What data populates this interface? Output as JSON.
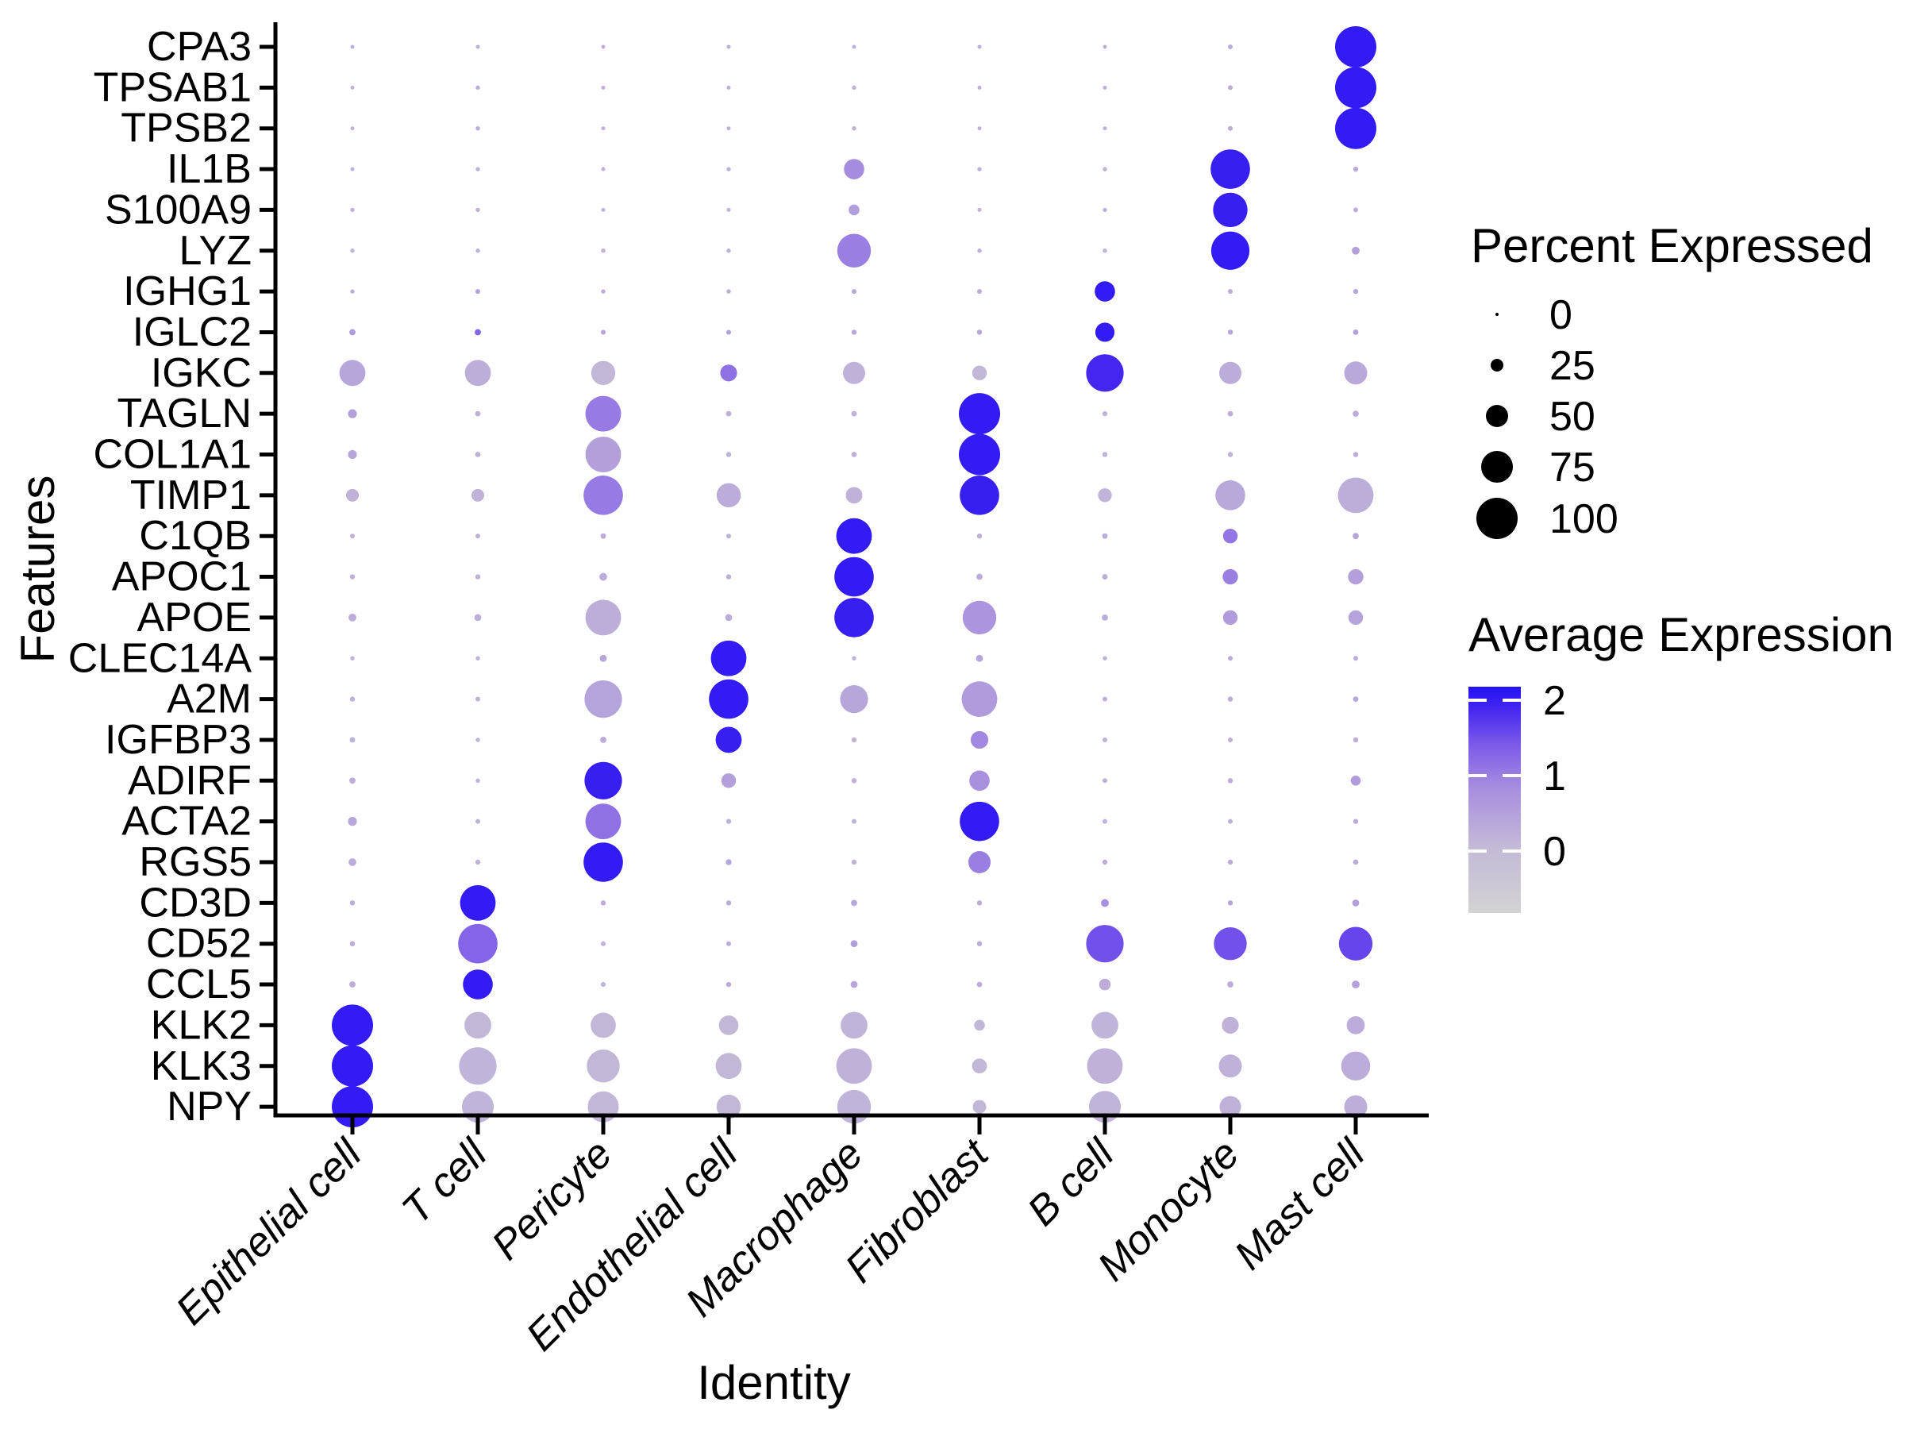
{
  "chart_data": {
    "type": "scatter",
    "subtype": "dotplot",
    "title": "",
    "xlabel": "Identity",
    "ylabel": "Features",
    "legend_position": "right",
    "grid": false,
    "cell_types": [
      "Epithelial cell",
      "T cell",
      "Pericyte",
      "Endothelial cell",
      "Macrophage",
      "Fibroblast",
      "B cell",
      "Monocyte",
      "Mast cell"
    ],
    "genes": [
      "CPA3",
      "TPSAB1",
      "TPSB2",
      "IL1B",
      "S100A9",
      "LYZ",
      "IGHG1",
      "IGLC2",
      "IGKC",
      "TAGLN",
      "COL1A1",
      "TIMP1",
      "C1QB",
      "APOC1",
      "APOE",
      "CLEC14A",
      "A2M",
      "IGFBP3",
      "ADIRF",
      "ACTA2",
      "RGS5",
      "CD3D",
      "CD52",
      "CCL5",
      "KLK2",
      "KLK3",
      "NPY"
    ],
    "series": [
      {
        "name": "percent_expressed",
        "values": [
          [
            2,
            2,
            2,
            2,
            2,
            2,
            2,
            4,
            100
          ],
          [
            2,
            3,
            2,
            2,
            3,
            2,
            2,
            4,
            100
          ],
          [
            2,
            3,
            2,
            2,
            3,
            2,
            2,
            4,
            100
          ],
          [
            2,
            3,
            2,
            3,
            45,
            3,
            3,
            95,
            5
          ],
          [
            3,
            3,
            2,
            2,
            20,
            2,
            3,
            82,
            4
          ],
          [
            3,
            3,
            3,
            3,
            80,
            3,
            3,
            92,
            12
          ],
          [
            3,
            4,
            3,
            3,
            4,
            4,
            45,
            4,
            5
          ],
          [
            8,
            8,
            4,
            4,
            5,
            5,
            42,
            5,
            6
          ],
          [
            60,
            60,
            55,
            36,
            50,
            30,
            90,
            50,
            52
          ],
          [
            15,
            6,
            85,
            6,
            6,
            100,
            5,
            6,
            8
          ],
          [
            15,
            6,
            85,
            5,
            6,
            100,
            5,
            5,
            5
          ],
          [
            25,
            25,
            95,
            55,
            35,
            95,
            28,
            70,
            85
          ],
          [
            4,
            4,
            6,
            4,
            85,
            5,
            6,
            30,
            8
          ],
          [
            5,
            5,
            12,
            5,
            95,
            8,
            6,
            32,
            32
          ],
          [
            12,
            10,
            85,
            10,
            95,
            80,
            8,
            30,
            30
          ],
          [
            3,
            3,
            10,
            85,
            3,
            10,
            3,
            4,
            4
          ],
          [
            5,
            4,
            90,
            95,
            65,
            85,
            4,
            5,
            6
          ],
          [
            6,
            3,
            8,
            60,
            5,
            38,
            4,
            4,
            5
          ],
          [
            8,
            3,
            90,
            30,
            5,
            45,
            4,
            5,
            18
          ],
          [
            15,
            4,
            85,
            5,
            4,
            95,
            4,
            4,
            5
          ],
          [
            12,
            5,
            95,
            7,
            5,
            50,
            5,
            5,
            6
          ],
          [
            5,
            85,
            5,
            5,
            8,
            5,
            12,
            5,
            10
          ],
          [
            5,
            95,
            4,
            4,
            10,
            5,
            90,
            78,
            80
          ],
          [
            8,
            70,
            4,
            5,
            10,
            6,
            22,
            8,
            12
          ],
          [
            100,
            62,
            58,
            43,
            62,
            20,
            62,
            36,
            39
          ],
          [
            100,
            90,
            78,
            60,
            85,
            31,
            85,
            52,
            68
          ],
          [
            100,
            75,
            73,
            55,
            80,
            27,
            75,
            48,
            52
          ]
        ]
      },
      {
        "name": "average_expression",
        "values": [
          [
            0.2,
            0.2,
            0.2,
            0.2,
            0.2,
            0.2,
            0.2,
            0.3,
            2.05
          ],
          [
            0.2,
            0.3,
            0.2,
            0.2,
            0.2,
            0.2,
            0.2,
            0.3,
            2.05
          ],
          [
            0.2,
            0.3,
            0.2,
            0.2,
            0.2,
            0.2,
            0.2,
            0.3,
            2.05
          ],
          [
            0.2,
            0.2,
            0.2,
            0.2,
            0.85,
            0.2,
            0.2,
            2.0,
            0.3
          ],
          [
            0.2,
            0.2,
            0.2,
            0.2,
            0.55,
            0.2,
            0.2,
            2.0,
            0.3
          ],
          [
            0.2,
            0.2,
            0.2,
            0.2,
            1.0,
            0.2,
            0.2,
            2.05,
            0.5
          ],
          [
            0.3,
            0.5,
            0.3,
            0.3,
            0.4,
            0.3,
            2.05,
            0.3,
            0.4
          ],
          [
            0.6,
            1.3,
            0.4,
            0.5,
            0.4,
            0.4,
            2.05,
            0.4,
            0.5
          ],
          [
            0.4,
            0.25,
            0.1,
            1.15,
            0.2,
            0.1,
            1.9,
            0.3,
            0.35
          ],
          [
            0.5,
            0.2,
            1.05,
            0.2,
            0.2,
            2.05,
            0.2,
            0.25,
            0.3
          ],
          [
            0.4,
            0.2,
            0.5,
            0.2,
            0.2,
            2.05,
            0.2,
            0.2,
            0.3
          ],
          [
            0.2,
            0.2,
            1.05,
            0.3,
            0.2,
            2.0,
            0.15,
            0.35,
            0.25
          ],
          [
            0.2,
            0.2,
            0.3,
            0.2,
            2.05,
            0.2,
            0.3,
            1.1,
            0.4
          ],
          [
            0.2,
            0.2,
            0.3,
            0.2,
            2.05,
            0.3,
            0.3,
            1.0,
            0.5
          ],
          [
            0.3,
            0.25,
            0.25,
            0.3,
            2.0,
            0.7,
            0.3,
            0.6,
            0.45
          ],
          [
            0.2,
            0.2,
            0.4,
            2.05,
            0.2,
            0.4,
            0.2,
            0.3,
            0.3
          ],
          [
            0.2,
            0.2,
            0.45,
            2.05,
            0.4,
            0.6,
            0.3,
            0.3,
            0.4
          ],
          [
            0.2,
            0.2,
            0.3,
            2.0,
            0.2,
            0.9,
            0.2,
            0.2,
            0.3
          ],
          [
            0.3,
            0.2,
            2.0,
            0.5,
            0.2,
            0.8,
            0.2,
            0.3,
            0.6
          ],
          [
            0.4,
            0.2,
            1.15,
            0.2,
            0.2,
            2.05,
            0.2,
            0.2,
            0.3
          ],
          [
            0.3,
            0.2,
            2.05,
            0.4,
            0.2,
            1.0,
            0.3,
            0.3,
            0.3
          ],
          [
            0.3,
            2.05,
            0.3,
            0.3,
            0.4,
            0.3,
            0.8,
            0.4,
            0.5
          ],
          [
            0.3,
            1.3,
            0.2,
            0.3,
            0.5,
            0.3,
            1.5,
            1.5,
            1.6
          ],
          [
            0.3,
            2.05,
            0.2,
            0.3,
            0.4,
            0.3,
            0.3,
            0.3,
            0.5
          ],
          [
            2.05,
            0.1,
            0.1,
            0.1,
            0.15,
            0.1,
            0.15,
            0.2,
            0.3
          ],
          [
            2.05,
            0.15,
            0.1,
            0.1,
            0.2,
            0.1,
            0.2,
            0.2,
            0.3
          ],
          [
            2.05,
            0.15,
            0.1,
            0.1,
            0.15,
            0.1,
            0.15,
            0.2,
            0.25
          ]
        ]
      }
    ]
  },
  "legend_size": {
    "title": "Percent Expressed",
    "breaks": [
      "0",
      "25",
      "50",
      "75",
      "100"
    ],
    "break_values": [
      0,
      25,
      50,
      75,
      100
    ],
    "dot_color": "#000000"
  },
  "legend_color": {
    "title": "Average Expression",
    "ticks": [
      "2",
      "1",
      "0"
    ],
    "tick_values": [
      2,
      1,
      0
    ],
    "domain": [
      -0.82,
      2.18
    ],
    "low_color": "#D3D3D3",
    "high_color": "#2312F6"
  }
}
